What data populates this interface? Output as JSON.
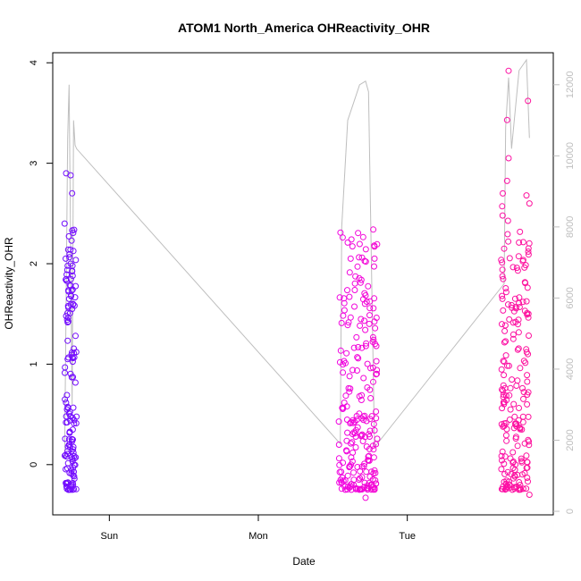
{
  "chart_data": {
    "type": "scatter",
    "title": "ATOM1 North_America OHReactivity_OHR",
    "xlabel": "Date",
    "ylabel": "OHReactivity_OHR",
    "x_ticks": [
      "Sun",
      "Mon",
      "Tue"
    ],
    "x_ticks_pos_days": [
      1.0,
      2.0,
      3.0
    ],
    "xlim_days": [
      0.62,
      3.98
    ],
    "ylim": [
      -0.5,
      4.1
    ],
    "y_ticks": [
      0,
      1,
      2,
      3,
      4
    ],
    "y2_label": "",
    "y2lim": [
      -100,
      12900
    ],
    "y2_ticks": [
      0,
      2000,
      4000,
      6000,
      8000,
      10000,
      12000
    ],
    "grid": false,
    "legend": "none",
    "colors": {
      "start_color": "#6a0dff",
      "mid_color": "#ee00ee",
      "end_color": "#ff1493",
      "line_color": "#bebebe"
    },
    "clusters": [
      {
        "name": "",
        "x_range_days": [
          0.7,
          0.78
        ],
        "n_points": 140
      },
      {
        "name": "",
        "x_range_days": [
          2.54,
          2.8
        ],
        "n_points": 230
      },
      {
        "name": "",
        "x_range_days": [
          3.63,
          3.82
        ],
        "n_points": 200
      }
    ],
    "points_sample": [
      {
        "x": 0.71,
        "y": 2.9
      },
      {
        "x": 0.7,
        "y": 2.4
      },
      {
        "x": 0.72,
        "y": 1.98
      },
      {
        "x": 0.73,
        "y": 1.65
      },
      {
        "x": 0.71,
        "y": 1.48
      },
      {
        "x": 0.72,
        "y": 1.05
      },
      {
        "x": 0.74,
        "y": 2.88
      },
      {
        "x": 0.75,
        "y": 2.7
      },
      {
        "x": 0.74,
        "y": 2.0
      },
      {
        "x": 0.75,
        "y": 1.93
      },
      {
        "x": 0.74,
        "y": 1.78
      },
      {
        "x": 0.75,
        "y": 1.55
      },
      {
        "x": 2.6,
        "y": 2.21
      },
      {
        "x": 2.62,
        "y": 2.05
      },
      {
        "x": 2.78,
        "y": 2.17
      },
      {
        "x": 2.78,
        "y": 2.05
      },
      {
        "x": 3.64,
        "y": 2.48
      },
      {
        "x": 3.65,
        "y": 2.15
      },
      {
        "x": 3.67,
        "y": 3.43
      },
      {
        "x": 3.68,
        "y": 3.05
      },
      {
        "x": 3.68,
        "y": 3.92
      },
      {
        "x": 3.81,
        "y": 3.62
      },
      {
        "x": 3.8,
        "y": 2.68
      },
      {
        "x": 3.82,
        "y": 2.6
      },
      {
        "x": 0.74,
        "y": -0.25
      },
      {
        "x": 2.72,
        "y": -0.33
      },
      {
        "x": 3.82,
        "y": -0.3
      }
    ],
    "line_series": [
      {
        "x": 0.7,
        "y2": 1500
      },
      {
        "x": 0.72,
        "y2": 10500
      },
      {
        "x": 0.73,
        "y2": 12000
      },
      {
        "x": 0.75,
        "y2": 3000
      },
      {
        "x": 0.76,
        "y2": 11000
      },
      {
        "x": 0.77,
        "y2": 10300
      },
      {
        "x": 0.78,
        "y2": 10200
      },
      {
        "x": 2.55,
        "y2": 1900
      },
      {
        "x": 2.56,
        "y2": 8000
      },
      {
        "x": 2.6,
        "y2": 11000
      },
      {
        "x": 2.64,
        "y2": 11500
      },
      {
        "x": 2.68,
        "y2": 12000
      },
      {
        "x": 2.72,
        "y2": 12100
      },
      {
        "x": 2.74,
        "y2": 11800
      },
      {
        "x": 2.78,
        "y2": 1800
      },
      {
        "x": 3.65,
        "y2": 6400
      },
      {
        "x": 3.66,
        "y2": 10800
      },
      {
        "x": 3.68,
        "y2": 12200
      },
      {
        "x": 3.7,
        "y2": 10200
      },
      {
        "x": 3.75,
        "y2": 12400
      },
      {
        "x": 3.8,
        "y2": 12700
      },
      {
        "x": 3.82,
        "y2": 10500
      }
    ]
  }
}
